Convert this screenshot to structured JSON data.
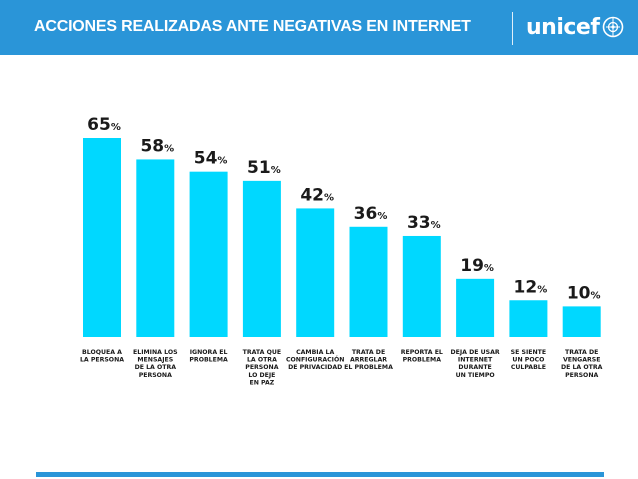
{
  "header": {
    "title": "ACCIONES REALIZADAS ANTE NEGATIVAS EN INTERNET",
    "brand": "unicef",
    "brand_icon": "unicef-globe-icon"
  },
  "colors": {
    "header_bg": "#2a95d8",
    "bar": "#00d8ff",
    "value_text": "#1a1a1a",
    "label_text": "#1a1a1a"
  },
  "chart_data": {
    "type": "bar",
    "title": "",
    "xlabel": "",
    "ylabel": "",
    "ylim": [
      0,
      65
    ],
    "unit": "%",
    "grid": false,
    "legend": "none",
    "categories": [
      [
        "BLOQUEA A",
        "LA PERSONA"
      ],
      [
        "ELIMINA LOS",
        "MENSAJES",
        "DE LA OTRA",
        "PERSONA"
      ],
      [
        "IGNORA EL",
        "PROBLEMA"
      ],
      [
        "TRATA QUE",
        "LA OTRA",
        "PERSONA",
        "LO DEJE",
        "EN PAZ"
      ],
      [
        "CAMBIA LA",
        "CONFIGURACIÓN",
        "DE PRIVACIDAD"
      ],
      [
        "TRATA DE",
        "ARREGLAR",
        "EL PROBLEMA"
      ],
      [
        "REPORTA EL",
        "PROBLEMA"
      ],
      [
        "DEJA DE USAR",
        "INTERNET",
        "DURANTE",
        "UN TIEMPO"
      ],
      [
        "SE SIENTE",
        "UN POCO",
        "CULPABLE"
      ],
      [
        "TRATA DE",
        "VENGARSE",
        "DE LA OTRA",
        "PERSONA"
      ]
    ],
    "values": [
      65,
      58,
      54,
      51,
      42,
      36,
      33,
      19,
      12,
      10
    ]
  }
}
